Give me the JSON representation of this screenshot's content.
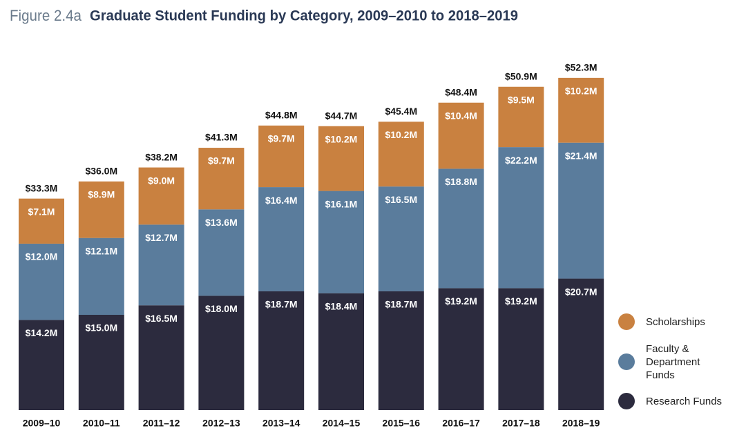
{
  "chart_data": {
    "type": "stacked_bar",
    "figure_label": "Figure 2.4a",
    "title": "Graduate Student Funding by Category, 2009–2010 to 2018–2019",
    "categories": [
      "2009–10",
      "2010–11",
      "2011–12",
      "2012–13",
      "2013–14",
      "2014–15",
      "2015–16",
      "2016–17",
      "2017–18",
      "2018–19"
    ],
    "series": [
      {
        "name": "Research Funds",
        "color": "#2c2b3e",
        "values": [
          14.2,
          15.0,
          16.5,
          18.0,
          18.7,
          18.4,
          18.7,
          19.2,
          19.2,
          20.7
        ],
        "value_labels": [
          "$14.2M",
          "$15.0M",
          "$16.5M",
          "$18.0M",
          "$18.7M",
          "$18.4M",
          "$18.7M",
          "$19.2M",
          "$19.2M",
          "$20.7M"
        ]
      },
      {
        "name": "Faculty & Department Funds",
        "color": "#5a7c9c",
        "values": [
          12.0,
          12.1,
          12.7,
          13.6,
          16.4,
          16.1,
          16.5,
          18.8,
          22.2,
          21.4
        ],
        "value_labels": [
          "$12.0M",
          "$12.1M",
          "$12.7M",
          "$13.6M",
          "$16.4M",
          "$16.1M",
          "$16.5M",
          "$18.8M",
          "$22.2M",
          "$21.4M"
        ]
      },
      {
        "name": "Scholarships",
        "color": "#c98140",
        "values": [
          7.1,
          8.9,
          9.0,
          9.7,
          9.7,
          10.2,
          10.2,
          10.4,
          9.5,
          10.2
        ],
        "value_labels": [
          "$7.1M",
          "$8.9M",
          "$9.0M",
          "$9.7M",
          "$9.7M",
          "$10.2M",
          "$10.2M",
          "$10.4M",
          "$9.5M",
          "$10.2M"
        ]
      }
    ],
    "totals": {
      "values": [
        33.3,
        36.0,
        38.2,
        41.3,
        44.8,
        44.7,
        45.4,
        48.4,
        50.9,
        52.3
      ],
      "value_labels": [
        "$33.3M",
        "$36.0M",
        "$38.2M",
        "$41.3M",
        "$44.8M",
        "$44.7M",
        "$45.4M",
        "$48.4M",
        "$50.9M",
        "$52.3M"
      ]
    }
  }
}
